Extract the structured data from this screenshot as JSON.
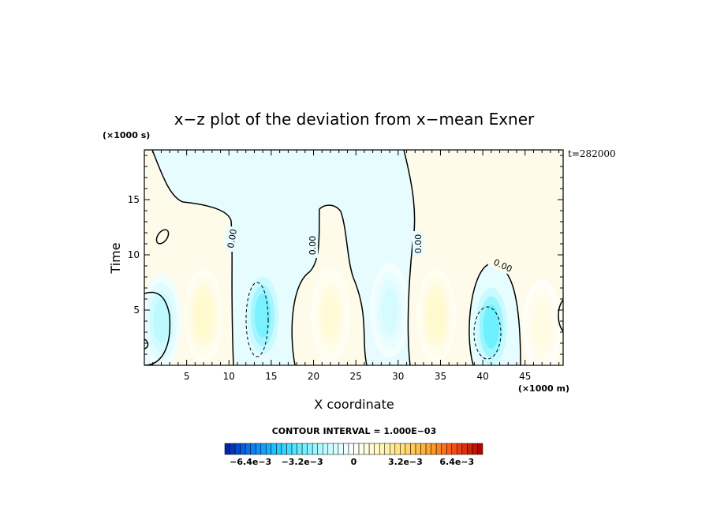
{
  "chart_data": {
    "type": "heatmap",
    "title": "x−z plot of the deviation from x−mean Exner",
    "xlabel": "X coordinate",
    "ylabel": "Time",
    "x_unit": "(×1000 m)",
    "y_unit": "(×1000 s)",
    "time_stamp": "t=282000",
    "xlim": [
      0,
      49.5
    ],
    "ylim": [
      0,
      19.5
    ],
    "x_ticks": [
      5,
      10,
      15,
      20,
      25,
      30,
      35,
      40,
      45
    ],
    "y_ticks": [
      5,
      10,
      15
    ],
    "contour_interval_text": "CONTOUR INTERVAL = 1.000E−03",
    "contour_labels": [
      "0.00",
      "0.00",
      "0.00",
      "0.00"
    ],
    "colorbar": {
      "min": -0.008,
      "max": 0.008,
      "labels": [
        "−6.4e−3",
        "−3.2e−3",
        "0",
        "3.2e−3",
        "6.4e−3"
      ],
      "label_values": [
        -0.0064,
        -0.0032,
        0,
        0.0032,
        0.0064
      ]
    },
    "features": [
      {
        "name": "negative-cell",
        "x": 2.0,
        "y": 4.0,
        "value": -0.0018
      },
      {
        "name": "positive-cell",
        "x": 7.0,
        "y": 4.5,
        "value": 0.0012
      },
      {
        "name": "negative-cell",
        "x": 14.0,
        "y": 4.5,
        "value": -0.003
      },
      {
        "name": "positive-cell",
        "x": 22.0,
        "y": 4.5,
        "value": 0.001
      },
      {
        "name": "negative-cell",
        "x": 29.0,
        "y": 5.0,
        "value": -0.0012
      },
      {
        "name": "positive-cell",
        "x": 34.5,
        "y": 4.5,
        "value": 0.0012
      },
      {
        "name": "negative-cell",
        "x": 41.0,
        "y": 3.5,
        "value": -0.0032
      },
      {
        "name": "positive-cell",
        "x": 47.0,
        "y": 3.5,
        "value": 0.0007
      }
    ]
  }
}
